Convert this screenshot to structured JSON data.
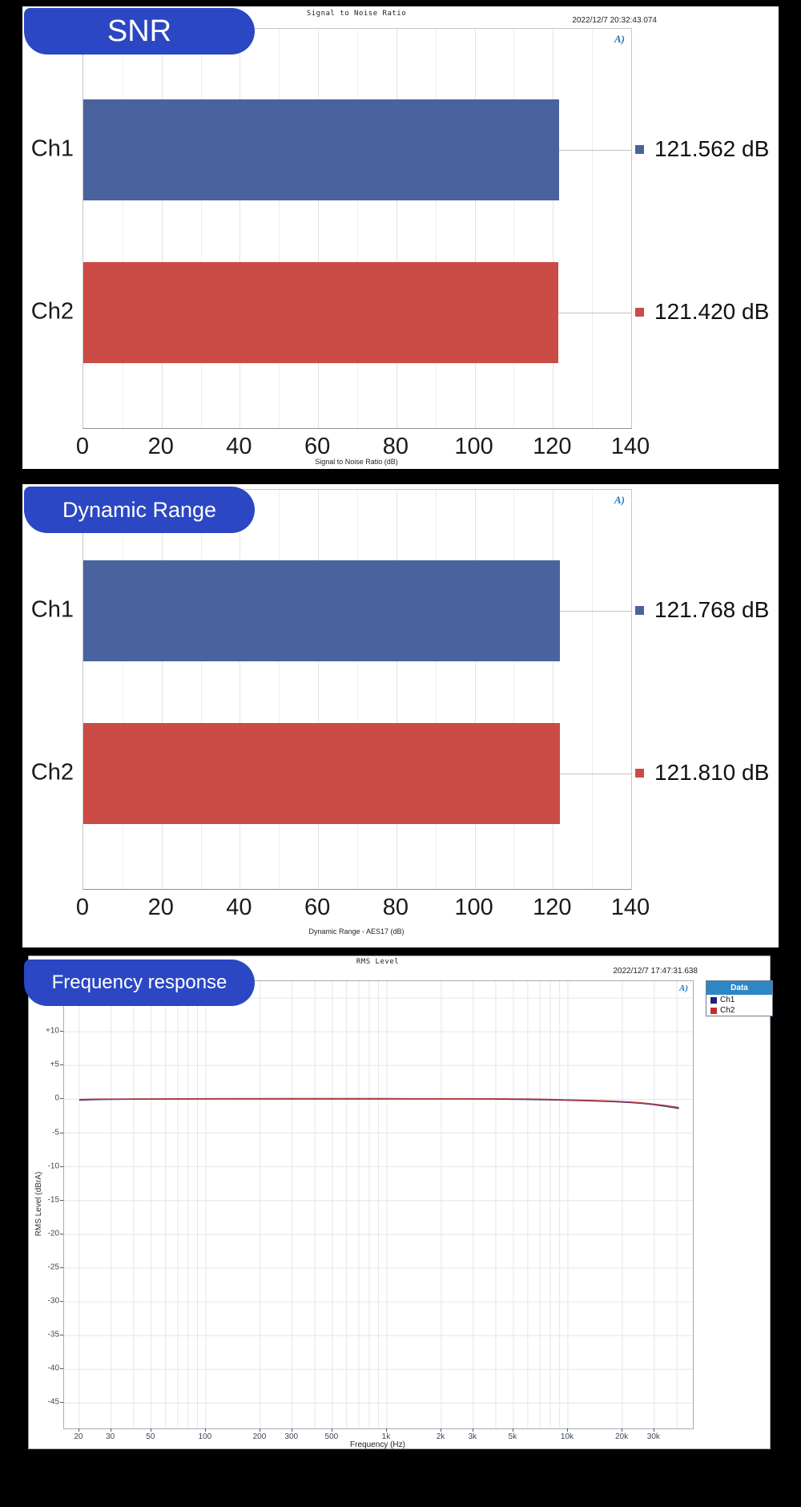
{
  "theme": {
    "page_bg": "#000000",
    "panel_bg": "#ffffff",
    "badge_bg": "#2b47c3",
    "badge_text_color": "#ffffff",
    "legend_header_bg": "#2e86c5",
    "ap_logo_color": "#2878b8",
    "minor_grid_color": "#efefef",
    "major_grid_color": "#e2e2e2"
  },
  "icons": {
    "ap_logo": "A)"
  },
  "chart_data": [
    {
      "type": "bar",
      "orientation": "horizontal",
      "badge": "SNR",
      "title": "Signal to Noise Ratio",
      "timestamp": "2022/12/7 20:32:43.074",
      "xlabel": "Signal to Noise Ratio (dB)",
      "xlim": [
        0,
        140
      ],
      "xticks": [
        0,
        20,
        40,
        60,
        80,
        100,
        120,
        140
      ],
      "minor_grid_step": 10,
      "grid": true,
      "categories": [
        "Ch1",
        "Ch2"
      ],
      "values": [
        121.562,
        121.42
      ],
      "value_labels": [
        "121.562 dB",
        "121.420 dB"
      ],
      "bar_colors": [
        "#4a639e",
        "#cb4b47"
      ]
    },
    {
      "type": "bar",
      "orientation": "horizontal",
      "badge": "Dynamic Range",
      "xlabel": "Dynamic Range - AES17 (dB)",
      "xlim": [
        0,
        140
      ],
      "xticks": [
        0,
        20,
        40,
        60,
        80,
        100,
        120,
        140
      ],
      "minor_grid_step": 10,
      "grid": true,
      "categories": [
        "Ch1",
        "Ch2"
      ],
      "values": [
        121.768,
        121.81
      ],
      "value_labels": [
        "121.768 dB",
        "121.810 dB"
      ],
      "bar_colors": [
        "#4a639e",
        "#cb4b47"
      ]
    },
    {
      "type": "line",
      "badge": "Frequency response",
      "title": "RMS Level",
      "timestamp": "2022/12/7 17:47:31.638",
      "xlabel": "Frequency (Hz)",
      "ylabel": "RMS Level (dBrA)",
      "xscale": "log",
      "xlim": [
        16.5,
        49000
      ],
      "ylim": [
        -48.75,
        17.5
      ],
      "grid": true,
      "yticks": [
        {
          "v": 15,
          "label": "+15"
        },
        {
          "v": 10,
          "label": "+10"
        },
        {
          "v": 5,
          "label": "+5"
        },
        {
          "v": 0,
          "label": "0"
        },
        {
          "v": -5,
          "label": "-5"
        },
        {
          "v": -10,
          "label": "-10"
        },
        {
          "v": -15,
          "label": "-15"
        },
        {
          "v": -20,
          "label": "-20"
        },
        {
          "v": -25,
          "label": "-25"
        },
        {
          "v": -30,
          "label": "-30"
        },
        {
          "v": -35,
          "label": "-35"
        },
        {
          "v": -40,
          "label": "-40"
        },
        {
          "v": -45,
          "label": "-45"
        }
      ],
      "xticks": [
        {
          "v": 20,
          "label": "20"
        },
        {
          "v": 30,
          "label": "30"
        },
        {
          "v": 50,
          "label": "50"
        },
        {
          "v": 100,
          "label": "100"
        },
        {
          "v": 200,
          "label": "200"
        },
        {
          "v": 300,
          "label": "300"
        },
        {
          "v": 500,
          "label": "500"
        },
        {
          "v": 1000,
          "label": "1k"
        },
        {
          "v": 2000,
          "label": "2k"
        },
        {
          "v": 3000,
          "label": "3k"
        },
        {
          "v": 5000,
          "label": "5k"
        },
        {
          "v": 10000,
          "label": "10k"
        },
        {
          "v": 20000,
          "label": "20k"
        },
        {
          "v": 30000,
          "label": "30k"
        }
      ],
      "legend": {
        "title": "Data",
        "position": "top-right",
        "entries": [
          {
            "label": "Ch1",
            "color": "#1b2377"
          },
          {
            "label": "Ch2",
            "color": "#c62b2b"
          }
        ]
      },
      "series": [
        {
          "name": "Ch1",
          "color": "#2f3a8a",
          "points": [
            [
              20,
              -0.12
            ],
            [
              25,
              -0.04
            ],
            [
              40,
              0.02
            ],
            [
              100,
              0.05
            ],
            [
              300,
              0.06
            ],
            [
              1000,
              0.06
            ],
            [
              2500,
              0.06
            ],
            [
              4000,
              0.04
            ],
            [
              6000,
              -0.02
            ],
            [
              8000,
              -0.08
            ],
            [
              10000,
              -0.14
            ],
            [
              14000,
              -0.24
            ],
            [
              18000,
              -0.34
            ],
            [
              22000,
              -0.46
            ],
            [
              26000,
              -0.62
            ],
            [
              30000,
              -0.8
            ],
            [
              34000,
              -1.0
            ],
            [
              38000,
              -1.2
            ],
            [
              41000,
              -1.35
            ]
          ]
        },
        {
          "name": "Ch2",
          "color": "#b2383e",
          "points": [
            [
              20,
              -0.04
            ],
            [
              25,
              0.02
            ],
            [
              40,
              0.05
            ],
            [
              100,
              0.08
            ],
            [
              300,
              0.09
            ],
            [
              1000,
              0.09
            ],
            [
              2500,
              0.08
            ],
            [
              4000,
              0.07
            ],
            [
              6000,
              0.03
            ],
            [
              8000,
              -0.03
            ],
            [
              10000,
              -0.09
            ],
            [
              14000,
              -0.18
            ],
            [
              18000,
              -0.28
            ],
            [
              22000,
              -0.4
            ],
            [
              26000,
              -0.55
            ],
            [
              30000,
              -0.72
            ],
            [
              34000,
              -0.9
            ],
            [
              38000,
              -1.1
            ],
            [
              41000,
              -1.22
            ]
          ]
        }
      ]
    }
  ]
}
